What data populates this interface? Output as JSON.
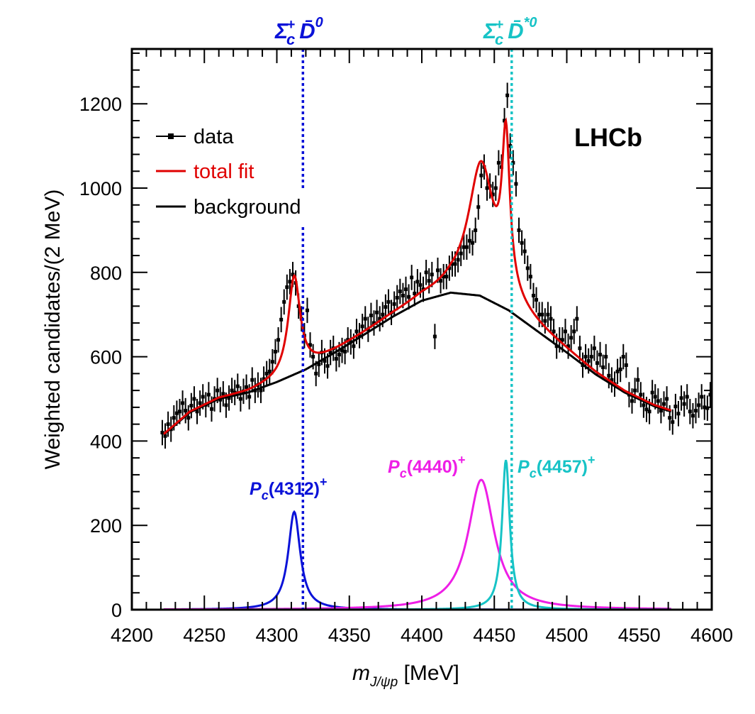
{
  "chart_data": {
    "type": "line",
    "xlabel": "m",
    "xlabel_sub": "J/ψp",
    "xlabel_unit": " [MeV]",
    "ylabel": "Weighted candidates/(2 MeV)",
    "xlim": [
      4200,
      4600
    ],
    "ylim": [
      0,
      1330
    ],
    "x_ticks": [
      4200,
      4250,
      4300,
      4350,
      4400,
      4450,
      4500,
      4550,
      4600
    ],
    "y_ticks": [
      0,
      200,
      400,
      600,
      800,
      1000,
      1200
    ],
    "watermark": "LHCb",
    "colors": {
      "data": "#000000",
      "total_fit": "#e00000",
      "background": "#000000",
      "pc4312": "#0a12d8",
      "pc4440": "#ee1ee6",
      "pc4457": "#17c3c6"
    },
    "legend": {
      "position": "top-left",
      "entries": [
        {
          "label": "data",
          "color": "#000000",
          "style": "marker-line"
        },
        {
          "label": "total fit",
          "color": "#e00000",
          "style": "line"
        },
        {
          "label": "background",
          "color": "#000000",
          "style": "line"
        }
      ]
    },
    "thresholds": [
      {
        "x": 4318,
        "color": "#0a12d8",
        "sigma": "Σ",
        "sub": "c",
        "sup": "+",
        "dbar": "D̄",
        "dsup": "0"
      },
      {
        "x": 4462,
        "color": "#17c3c6",
        "sigma": "Σ",
        "sub": "c",
        "sup": "+",
        "dbar": "D̄",
        "dsup": "*0"
      }
    ],
    "peak_labels": [
      {
        "P": "P",
        "sub": "c",
        "mass": "(4312)",
        "sup": "+",
        "color": "#0a12d8"
      },
      {
        "P": "P",
        "sub": "c",
        "mass": "(4440)",
        "sup": "+",
        "color": "#ee1ee6"
      },
      {
        "P": "P",
        "sub": "c",
        "mass": "(4457)",
        "sup": "+",
        "color": "#17c3c6"
      }
    ],
    "background_curve": {
      "x": [
        4222,
        4240,
        4260,
        4280,
        4300,
        4320,
        4340,
        4360,
        4380,
        4400,
        4420,
        4440,
        4460,
        4480,
        4500,
        4520,
        4540,
        4560,
        4572
      ],
      "y": [
        415,
        468,
        500,
        515,
        540,
        570,
        610,
        652,
        695,
        733,
        752,
        745,
        710,
        660,
        610,
        558,
        515,
        483,
        470
      ]
    },
    "peaks": [
      {
        "name": "Pc(4312)+",
        "mass": 4312,
        "width": 10,
        "height": 232
      },
      {
        "name": "Pc(4440)+",
        "mass": 4441,
        "width": 22,
        "height": 308
      },
      {
        "name": "Pc(4457)+",
        "mass": 4458,
        "width": 6.5,
        "height": 355
      }
    ],
    "data_points": {
      "x": [
        4221,
        4223,
        4225,
        4227,
        4229,
        4231,
        4233,
        4235,
        4237,
        4239,
        4241,
        4243,
        4245,
        4247,
        4249,
        4251,
        4253,
        4255,
        4257,
        4259,
        4261,
        4263,
        4265,
        4267,
        4269,
        4271,
        4273,
        4275,
        4277,
        4279,
        4281,
        4283,
        4285,
        4287,
        4289,
        4291,
        4293,
        4295,
        4297,
        4299,
        4301,
        4303,
        4305,
        4307,
        4309,
        4311,
        4313,
        4315,
        4317,
        4319,
        4321,
        4323,
        4325,
        4327,
        4329,
        4331,
        4333,
        4335,
        4337,
        4339,
        4341,
        4343,
        4345,
        4347,
        4349,
        4351,
        4353,
        4355,
        4357,
        4359,
        4361,
        4363,
        4365,
        4367,
        4369,
        4371,
        4373,
        4375,
        4377,
        4379,
        4381,
        4383,
        4385,
        4387,
        4389,
        4391,
        4393,
        4395,
        4397,
        4399,
        4401,
        4403,
        4405,
        4407,
        4409,
        4411,
        4413,
        4415,
        4417,
        4419,
        4421,
        4423,
        4425,
        4427,
        4429,
        4431,
        4433,
        4435,
        4437,
        4439,
        4441,
        4443,
        4445,
        4447,
        4449,
        4451,
        4453,
        4455,
        4457,
        4459,
        4461,
        4463,
        4465,
        4467,
        4469,
        4471,
        4473,
        4475,
        4477,
        4479,
        4481,
        4483,
        4485,
        4487,
        4489,
        4491,
        4493,
        4495,
        4497,
        4499,
        4501,
        4503,
        4505,
        4507,
        4509,
        4511,
        4513,
        4515,
        4517,
        4519,
        4521,
        4523,
        4525,
        4527,
        4529,
        4531,
        4533,
        4535,
        4537,
        4539,
        4541,
        4543,
        4545,
        4547,
        4549,
        4551,
        4553,
        4555,
        4557,
        4559,
        4561,
        4563,
        4565,
        4567,
        4569,
        4571,
        4573,
        4575,
        4577,
        4579,
        4581,
        4583,
        4585,
        4587,
        4589,
        4591,
        4593,
        4595,
        4597,
        4599
      ],
      "y": [
        420,
        412,
        440,
        428,
        455,
        466,
        470,
        490,
        472,
        455,
        484,
        500,
        470,
        490,
        505,
        486,
        510,
        476,
        500,
        520,
        498,
        512,
        485,
        502,
        520,
        515,
        530,
        500,
        518,
        528,
        505,
        545,
        520,
        533,
        520,
        547,
        560,
        565,
        588,
        612,
        640,
        688,
        730,
        765,
        778,
        795,
        775,
        720,
        690,
        650,
        710,
        628,
        600,
        560,
        582,
        610,
        590,
        578,
        610,
        620,
        595,
        605,
        615,
        612,
        640,
        635,
        625,
        660,
        650,
        672,
        690,
        665,
        698,
        680,
        705,
        690,
        700,
        718,
        730,
        705,
        725,
        740,
        755,
        745,
        760,
        742,
        788,
        750,
        778,
        770,
        760,
        800,
        780,
        795,
        648,
        805,
        780,
        790,
        790,
        810,
        820,
        820,
        830,
        845,
        860,
        860,
        875,
        870,
        900,
        955,
        1030,
        1050,
        1000,
        1005,
        985,
        1000,
        1060,
        1050,
        1160,
        1220,
        1100,
        1060,
        1010,
        900,
        870,
        850,
        810,
        790,
        745,
        735,
        700,
        700,
        685,
        700,
        690,
        660,
        625,
        640,
        640,
        660,
        625,
        645,
        660,
        690,
        620,
        580,
        600,
        590,
        600,
        620,
        585,
        605,
        575,
        600,
        555,
        545,
        535,
        565,
        570,
        600,
        580,
        510,
        495,
        520,
        545,
        510,
        485,
        475,
        470,
        515,
        505,
        495,
        472,
        488,
        500,
        455,
        445,
        482,
        465,
        502,
        488,
        505,
        470,
        460,
        472,
        485,
        505,
        480,
        478,
        510
      ],
      "err": 30
    }
  }
}
